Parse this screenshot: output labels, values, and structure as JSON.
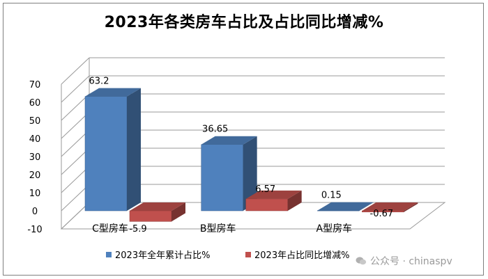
{
  "chart_data": {
    "type": "bar",
    "title": "2023年各类房车占比及占比同比增减%",
    "categories": [
      "C型房车",
      "B型房车",
      "A型房车"
    ],
    "series": [
      {
        "name": "2023年全年累计占比%",
        "values": [
          63.2,
          36.65,
          0.15
        ],
        "color": "#4f81bd"
      },
      {
        "name": "2023年占比同比增减%",
        "values": [
          -5.9,
          6.57,
          -0.67
        ],
        "color": "#c0504d"
      }
    ],
    "data_labels": [
      [
        "63.2",
        "36.65",
        "0.15"
      ],
      [
        "-5.9",
        "6.57",
        "-0.67"
      ]
    ],
    "ylim": [
      -10,
      70
    ],
    "yticks": [
      "-10",
      "0",
      "10",
      "20",
      "30",
      "40",
      "50",
      "60",
      "70"
    ],
    "grid": true,
    "three_d": true,
    "legend_position": "bottom"
  },
  "watermark": {
    "text": "公众号 · chinaspv",
    "icon": "wechat-icon"
  }
}
